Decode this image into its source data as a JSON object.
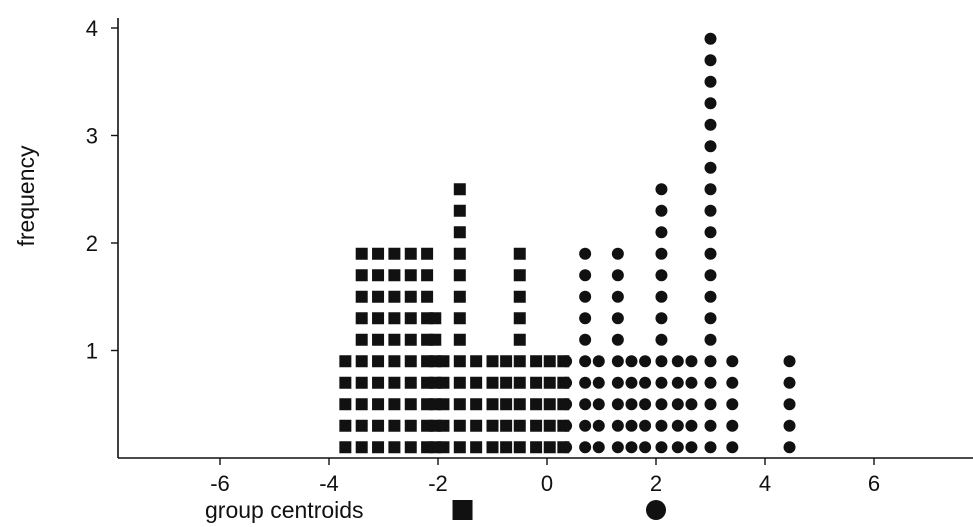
{
  "chart_data": {
    "type": "scatter",
    "ylabel": "frequency",
    "xlim": [
      -7.8,
      7.8
    ],
    "ylim": [
      0,
      4
    ],
    "x_ticks": [
      {
        "value": -6,
        "label": "-6"
      },
      {
        "value": -4,
        "label": "-4"
      },
      {
        "value": -2,
        "label": "-2"
      },
      {
        "value": 0,
        "label": "0"
      },
      {
        "value": 2,
        "label": "2"
      },
      {
        "value": 4,
        "label": "4"
      },
      {
        "value": 6,
        "label": "6"
      }
    ],
    "y_ticks": [
      {
        "value": 1,
        "label": "1"
      },
      {
        "value": 2,
        "label": "2"
      },
      {
        "value": 3,
        "label": "3"
      },
      {
        "value": 4,
        "label": "4"
      }
    ],
    "grid": false,
    "series": [
      {
        "marker": "square",
        "color": "#111111",
        "stacks": [
          {
            "x": -3.7,
            "count": 5
          },
          {
            "x": -3.4,
            "count": 10
          },
          {
            "x": -3.1,
            "count": 10
          },
          {
            "x": -2.8,
            "count": 10
          },
          {
            "x": -2.5,
            "count": 10
          },
          {
            "x": -2.2,
            "count": 10
          },
          {
            "x": -2.05,
            "count": 7
          },
          {
            "x": -1.9,
            "count": 5
          },
          {
            "x": -1.6,
            "count": 13
          },
          {
            "x": -1.3,
            "count": 5
          },
          {
            "x": -1.0,
            "count": 5
          },
          {
            "x": -0.75,
            "count": 5
          },
          {
            "x": -0.5,
            "count": 10
          },
          {
            "x": -0.2,
            "count": 5
          },
          {
            "x": 0.05,
            "count": 5
          },
          {
            "x": 0.3,
            "count": 5
          }
        ]
      },
      {
        "marker": "circle",
        "color": "#111111",
        "stacks": [
          {
            "x": 0.35,
            "count": 5
          },
          {
            "x": 0.7,
            "count": 10
          },
          {
            "x": 0.95,
            "count": 5
          },
          {
            "x": 1.3,
            "count": 10
          },
          {
            "x": 1.55,
            "count": 5
          },
          {
            "x": 1.8,
            "count": 5
          },
          {
            "x": 2.1,
            "count": 13
          },
          {
            "x": 2.4,
            "count": 5
          },
          {
            "x": 2.65,
            "count": 5
          },
          {
            "x": 3.0,
            "count": 20
          },
          {
            "x": 3.4,
            "count": 5
          },
          {
            "x": 4.45,
            "count": 5
          }
        ]
      }
    ],
    "legend": {
      "text": "group centroids",
      "centroids": [
        {
          "marker": "square",
          "x": -1.55
        },
        {
          "marker": "circle",
          "x": 2.0
        }
      ]
    }
  }
}
